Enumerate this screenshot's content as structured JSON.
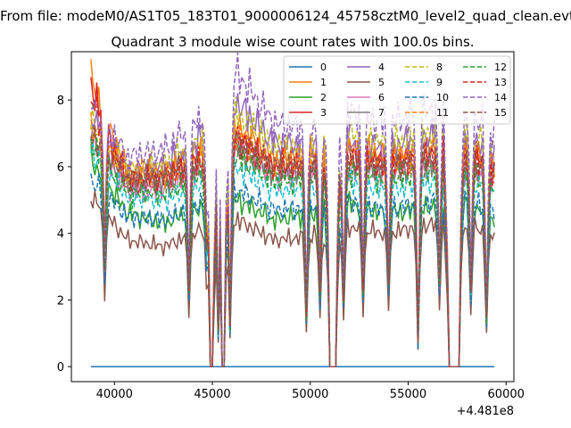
{
  "suptitle": "From file: modeM0/AS1T05_183T01_9000006124_45758cztM0_level2_quad_clean.evt",
  "chart_data": {
    "type": "line",
    "title": "Quadrant 3 module wise count rates with 100.0s bins.",
    "xlabel": "",
    "ylabel": "",
    "x_offset_label": "+4.481e8",
    "x_range": [
      38800,
      59400
    ],
    "xlim": [
      37800,
      60400
    ],
    "ylim": [
      -0.45,
      9.45
    ],
    "x_ticks": [
      40000,
      45000,
      50000,
      55000,
      60000
    ],
    "x_tick_labels": [
      "40000",
      "45000",
      "50000",
      "55000",
      "60000"
    ],
    "y_ticks": [
      0,
      2,
      4,
      6,
      8
    ],
    "y_tick_labels": [
      "0",
      "2",
      "4",
      "6",
      "8"
    ],
    "grid": false,
    "legend_position": "top-right",
    "legend_columns": 4,
    "dropouts": [
      [
        44900,
        45050
      ],
      [
        45500,
        45600
      ],
      [
        51000,
        51300
      ],
      [
        57050,
        57600
      ]
    ],
    "dips": [
      [
        39500,
        2.8
      ],
      [
        43800,
        2.4
      ],
      [
        44700,
        3.5
      ],
      [
        45300,
        1.0
      ],
      [
        45900,
        1.1
      ],
      [
        49800,
        1.6
      ],
      [
        50500,
        2.2
      ],
      [
        51700,
        2.0
      ],
      [
        52700,
        2.3
      ],
      [
        54000,
        2.6
      ],
      [
        55500,
        0.7
      ],
      [
        56600,
        2.5
      ],
      [
        58200,
        2.2
      ],
      [
        59000,
        1.5
      ]
    ],
    "series": [
      {
        "name": "0",
        "color": "#1f77b4",
        "dash": "solid",
        "values": [
          0,
          0,
          0,
          0,
          0,
          0,
          0,
          0,
          0,
          0,
          0,
          0
        ]
      },
      {
        "name": "1",
        "color": "#ff7f0e",
        "dash": "solid",
        "values": [
          8.6,
          5.8,
          5.9,
          6.5,
          7.2,
          6.3,
          6.4,
          6.6,
          6.3,
          6.5,
          6.8,
          6.2
        ]
      },
      {
        "name": "2",
        "color": "#2ca02c",
        "dash": "solid",
        "values": [
          6.2,
          4.6,
          4.3,
          4.8,
          5.0,
          4.4,
          4.6,
          4.9,
          4.6,
          4.7,
          5.1,
          4.4
        ]
      },
      {
        "name": "3",
        "color": "#d62728",
        "dash": "solid",
        "values": [
          8.5,
          5.4,
          5.6,
          6.3,
          6.8,
          6.0,
          6.0,
          6.4,
          6.1,
          6.3,
          6.6,
          6.0
        ]
      },
      {
        "name": "4",
        "color": "#9467bd",
        "dash": "solid",
        "values": [
          7.6,
          5.7,
          6.0,
          6.9,
          7.9,
          6.7,
          6.6,
          6.7,
          6.5,
          6.9,
          7.0,
          6.3
        ]
      },
      {
        "name": "5",
        "color": "#8c564b",
        "dash": "solid",
        "values": [
          5.1,
          3.8,
          3.6,
          4.1,
          4.4,
          3.8,
          3.9,
          4.2,
          4.0,
          4.2,
          4.4,
          3.9
        ]
      },
      {
        "name": "6",
        "color": "#e377c2",
        "dash": "solid",
        "values": [
          6.8,
          5.3,
          5.3,
          5.9,
          6.5,
          5.7,
          5.7,
          5.9,
          5.8,
          5.9,
          6.1,
          5.5
        ]
      },
      {
        "name": "7",
        "color": "#7f7f7f",
        "dash": "solid",
        "values": [
          7.0,
          5.5,
          5.6,
          6.0,
          6.6,
          5.8,
          5.8,
          6.0,
          5.9,
          6.1,
          6.3,
          5.7
        ]
      },
      {
        "name": "8",
        "color": "#bcbd22",
        "dash": "dashed",
        "values": [
          7.4,
          5.9,
          6.1,
          6.8,
          7.6,
          6.6,
          6.5,
          7.0,
          6.7,
          6.9,
          7.2,
          6.6
        ]
      },
      {
        "name": "9",
        "color": "#17becf",
        "dash": "dashed",
        "values": [
          6.5,
          5.1,
          5.0,
          5.5,
          6.0,
          5.3,
          5.4,
          5.6,
          5.3,
          5.5,
          5.7,
          5.2
        ]
      },
      {
        "name": "10",
        "color": "#1f77b4",
        "dash": "dashed",
        "values": [
          5.6,
          4.5,
          4.4,
          4.9,
          5.3,
          4.7,
          4.8,
          5.0,
          4.7,
          4.9,
          5.1,
          4.6
        ]
      },
      {
        "name": "11",
        "color": "#ff7f0e",
        "dash": "dashed",
        "values": [
          7.2,
          5.8,
          5.8,
          6.3,
          7.0,
          6.1,
          6.2,
          6.5,
          6.2,
          6.4,
          6.7,
          6.1
        ]
      },
      {
        "name": "12",
        "color": "#2ca02c",
        "dash": "dashed",
        "values": [
          6.6,
          5.2,
          5.2,
          5.7,
          6.3,
          5.6,
          5.6,
          5.9,
          5.6,
          5.8,
          6.0,
          5.4
        ]
      },
      {
        "name": "13",
        "color": "#d62728",
        "dash": "dashed",
        "values": [
          8.0,
          5.6,
          5.7,
          6.2,
          6.9,
          6.0,
          6.1,
          6.3,
          6.0,
          6.2,
          6.5,
          5.9
        ]
      },
      {
        "name": "14",
        "color": "#9467bd",
        "dash": "dashed",
        "values": [
          7.9,
          6.3,
          6.5,
          7.5,
          8.8,
          7.3,
          7.1,
          7.6,
          7.3,
          7.6,
          7.9,
          7.0
        ]
      },
      {
        "name": "15",
        "color": "#8c564b",
        "dash": "dashed",
        "values": [
          7.0,
          5.6,
          5.7,
          6.2,
          6.8,
          6.0,
          6.0,
          6.2,
          6.0,
          6.2,
          6.4,
          5.8
        ]
      }
    ]
  }
}
